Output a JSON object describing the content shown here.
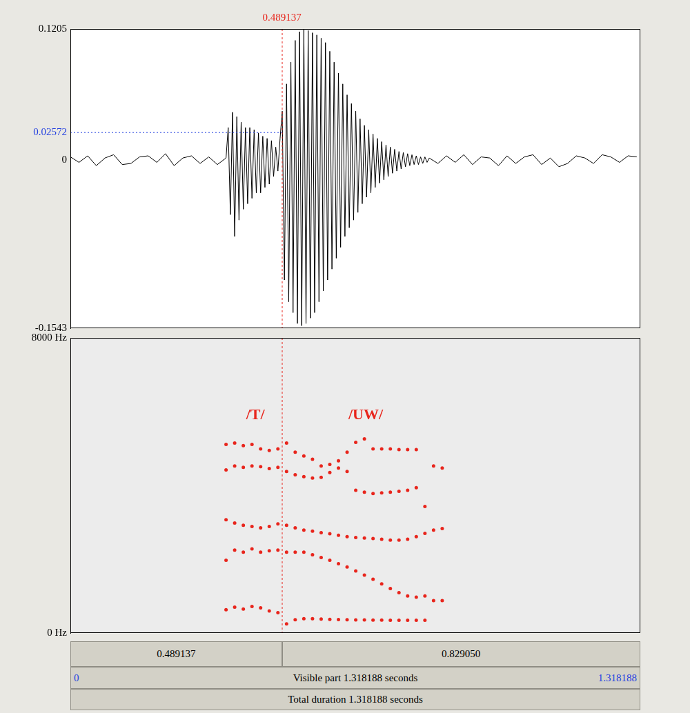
{
  "chart_data": [
    {
      "type": "line",
      "color": "#000000",
      "grid": false,
      "tick_labels": "y",
      "xlim": [
        0,
        1.318188
      ],
      "ylim": [
        -0.1543,
        0.1205
      ],
      "yticks": [
        -0.1543,
        0,
        0.1205
      ],
      "x": [
        0,
        0.02,
        0.04,
        0.06,
        0.08,
        0.1,
        0.12,
        0.14,
        0.16,
        0.18,
        0.2,
        0.22,
        0.24,
        0.26,
        0.28,
        0.3,
        0.32,
        0.34,
        0.36,
        0.365,
        0.37,
        0.375,
        0.38,
        0.385,
        0.39,
        0.395,
        0.4,
        0.405,
        0.41,
        0.415,
        0.42,
        0.425,
        0.43,
        0.435,
        0.44,
        0.445,
        0.45,
        0.455,
        0.46,
        0.465,
        0.47,
        0.475,
        0.48,
        0.485,
        0.49,
        0.495,
        0.5,
        0.505,
        0.51,
        0.515,
        0.52,
        0.525,
        0.53,
        0.535,
        0.54,
        0.545,
        0.55,
        0.555,
        0.56,
        0.565,
        0.57,
        0.575,
        0.58,
        0.585,
        0.59,
        0.595,
        0.6,
        0.605,
        0.61,
        0.615,
        0.62,
        0.625,
        0.63,
        0.635,
        0.64,
        0.645,
        0.65,
        0.655,
        0.66,
        0.665,
        0.67,
        0.675,
        0.68,
        0.685,
        0.69,
        0.695,
        0.7,
        0.705,
        0.71,
        0.715,
        0.72,
        0.725,
        0.73,
        0.735,
        0.74,
        0.745,
        0.75,
        0.755,
        0.76,
        0.765,
        0.77,
        0.775,
        0.78,
        0.785,
        0.79,
        0.795,
        0.8,
        0.805,
        0.81,
        0.815,
        0.82,
        0.825,
        0.83,
        0.85,
        0.87,
        0.89,
        0.91,
        0.93,
        0.95,
        0.97,
        0.99,
        1.01,
        1.03,
        1.05,
        1.07,
        1.09,
        1.11,
        1.13,
        1.15,
        1.17,
        1.19,
        1.21,
        1.23,
        1.25,
        1.27,
        1.29,
        1.31
      ],
      "values": [
        0.003,
        -0.002,
        0.004,
        -0.005,
        0.002,
        0.005,
        -0.004,
        -0.003,
        0.003,
        0.004,
        -0.002,
        0.006,
        -0.005,
        0.002,
        0.004,
        -0.003,
        0.003,
        -0.004,
        0.002,
        0.03,
        -0.05,
        0.044,
        -0.07,
        0.04,
        -0.055,
        0.035,
        -0.045,
        0.03,
        -0.04,
        0.03,
        -0.035,
        0.028,
        -0.03,
        0.025,
        -0.03,
        0.022,
        -0.025,
        0.02,
        -0.022,
        0.018,
        -0.015,
        0.012,
        -0.01,
        0.02,
        0.045,
        -0.11,
        0.07,
        -0.13,
        0.09,
        -0.14,
        0.11,
        -0.15,
        0.118,
        -0.152,
        0.12,
        -0.15,
        0.119,
        -0.145,
        0.117,
        -0.14,
        0.115,
        -0.13,
        0.112,
        -0.12,
        0.108,
        -0.11,
        0.1,
        -0.1,
        0.09,
        -0.09,
        0.08,
        -0.08,
        0.07,
        -0.07,
        0.06,
        -0.062,
        0.052,
        -0.055,
        0.045,
        -0.048,
        0.038,
        -0.04,
        0.032,
        -0.034,
        0.028,
        -0.03,
        0.024,
        -0.025,
        0.02,
        -0.021,
        0.017,
        -0.018,
        0.014,
        -0.015,
        0.012,
        -0.012,
        0.01,
        -0.01,
        0.008,
        -0.008,
        0.007,
        -0.006,
        0.006,
        -0.005,
        0.005,
        -0.004,
        0.004,
        -0.004,
        0.003,
        -0.003,
        0.003,
        -0.002,
        0.002,
        -0.003,
        0.004,
        -0.002,
        0.005,
        -0.004,
        0.003,
        0.002,
        -0.005,
        0.004,
        -0.003,
        0.003,
        0.005,
        -0.004,
        0.002,
        -0.006,
        -0.003,
        0.004,
        0.002,
        -0.003,
        0.005,
        0.003,
        -0.002,
        0.004,
        0.003
      ]
    },
    {
      "type": "scatter",
      "marker": "circle",
      "grid": false,
      "tick_labels": "y",
      "xlim": [
        0,
        1.318188
      ],
      "ylim": [
        0,
        8000
      ],
      "yticks": [
        {
          "value": 0,
          "label": "0 Hz"
        },
        {
          "value": 8000,
          "label": "8000 Hz"
        }
      ],
      "x": [
        0.36,
        0.38,
        0.4,
        0.42,
        0.44,
        0.46,
        0.48,
        0.5,
        0.52,
        0.54,
        0.56,
        0.58,
        0.6,
        0.62,
        0.64,
        0.66,
        0.68,
        0.7,
        0.72,
        0.74,
        0.76,
        0.78,
        0.8,
        0.82,
        0.84,
        0.86
      ],
      "series": [
        {
          "color": "#e8251c",
          "values": [
            630,
            700,
            650,
            720,
            680,
            600,
            550,
            250,
            360,
            390,
            390,
            380,
            370,
            365,
            360,
            355,
            355,
            350,
            350,
            348,
            348,
            346,
            345,
            345,
            null,
            null
          ]
        },
        {
          "color": "#e8251c",
          "values": [
            1970,
            2250,
            2190,
            2280,
            2190,
            2230,
            2250,
            2190,
            2190,
            2190,
            2120,
            2045,
            1970,
            1880,
            1790,
            1680,
            1570,
            1460,
            1330,
            1205,
            1095,
            1005,
            970,
            1005,
            880,
            880
          ]
        },
        {
          "color": "#e8251c",
          "values": [
            3070,
            2980,
            2920,
            2890,
            2850,
            2890,
            2960,
            2920,
            2850,
            2790,
            2760,
            2720,
            2690,
            2650,
            2610,
            2590,
            2575,
            2560,
            2540,
            2520,
            2520,
            2540,
            2610,
            2700,
            2790,
            2830
          ]
        },
        {
          "color": "#e8251c",
          "values": [
            4420,
            4530,
            4490,
            4530,
            4510,
            4460,
            4490,
            4380,
            4290,
            4240,
            4200,
            4220,
            4350,
            4470,
            4380,
            3870,
            3820,
            3780,
            3800,
            3820,
            3840,
            3870,
            3940,
            3430,
            4530,
            4470
          ]
        },
        {
          "color": "#e8251c",
          "values": [
            5110,
            5150,
            5080,
            5110,
            4990,
            4950,
            4990,
            5150,
            4900,
            4800,
            4710,
            4530,
            4570,
            4670,
            4900,
            5170,
            5260,
            4990,
            4990,
            4990,
            4970,
            4970,
            4970,
            null,
            null,
            null
          ]
        }
      ],
      "annotations": [
        {
          "text": "/T/",
          "x": 0.428,
          "y": 5900,
          "color": "#e8251c"
        },
        {
          "text": "/UW/",
          "x": 0.683,
          "y": 5900,
          "color": "#e8251c"
        }
      ]
    }
  ],
  "cursor": {
    "time": 0.489137,
    "amplitude": 0.02572,
    "color": "#e8251c",
    "amplitude_color": "#2440e0"
  },
  "selection_bar": [
    0.489137,
    {
      "value": 0.82905,
      "label": "0.829050"
    }
  ],
  "visible_bar": {
    "start": 0,
    "end": 1.318188,
    "text": "Visible part 1.318188 seconds",
    "color": "#2440e0"
  },
  "total_text": "Total duration 1.318188 seconds"
}
